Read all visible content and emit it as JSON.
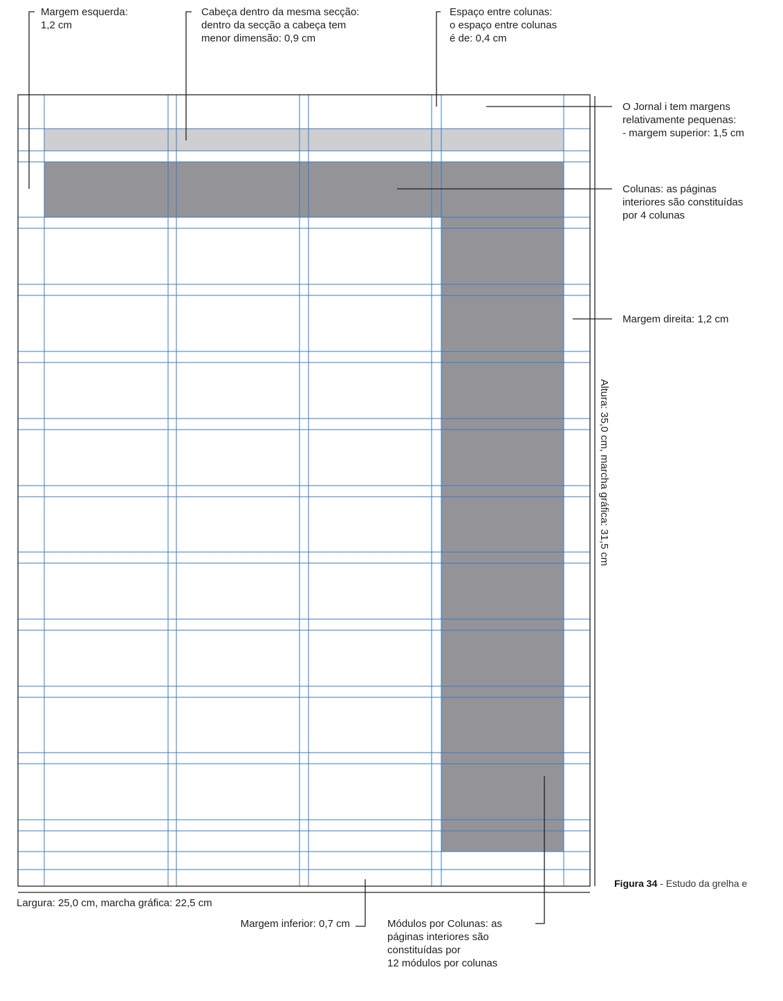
{
  "colors": {
    "guide": "#3a78c2",
    "light_box": "#cfcfd1",
    "dark_box": "#949498",
    "outline": "#222222"
  },
  "labels": {
    "left_margin": "Margem esquerda:\n1,2 cm",
    "header": "Cabeça dentro da mesma secção:\ndentro da secção a cabeça tem\nmenor dimensão: 0,9 cm",
    "gutter": "Espaço entre colunas:\no espaço entre colunas\né de: 0,4 cm",
    "top_margin": "O Jornal i tem margens\nrelativamente pequenas:\n- margem superior: 1,5 cm",
    "columns": "Colunas: as páginas\ninteriores são constituídas\npor 4 colunas",
    "right_margin": "Margem direita: 1,2 cm",
    "height": "Altura: 35,0 cm, marcha gráfica: 31,5 cm",
    "width": "Largura: 25,0 cm, marcha gráfica: 22,5 cm",
    "bottom_margin": "Margem inferior: 0,7 cm",
    "modules": "Módulos por Colunas: as\npáginas interiores são\nconstituídas por\n12 módulos por colunas"
  },
  "caption": {
    "figure": "Figura 34",
    "text": " - Estudo da grelha e"
  }
}
